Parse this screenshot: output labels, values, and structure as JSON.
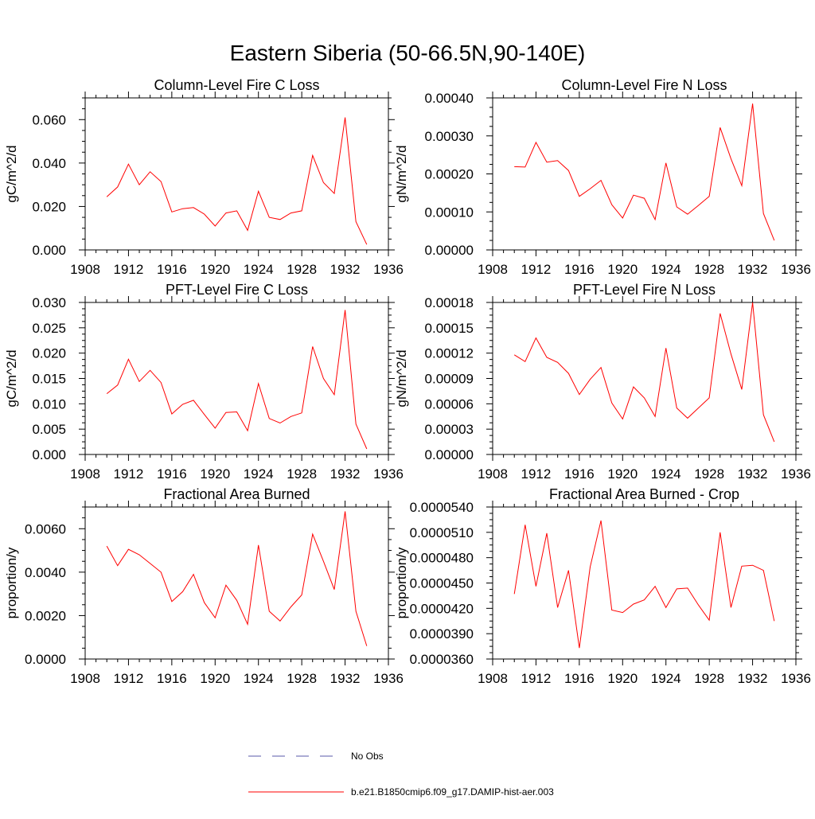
{
  "figure": {
    "title": "Eastern Siberia (50-66.5N,90-140E)"
  },
  "legend": {
    "items": [
      {
        "label": "No Obs",
        "color": "#5a5aa8",
        "style": "dashed"
      },
      {
        "label": "b.e21.B1850cmip6.f09_g17.DAMIP-hist-aer.003",
        "color": "#ff0000",
        "style": "solid"
      }
    ]
  },
  "chart_data": [
    {
      "type": "line",
      "title": "Column-Level Fire C Loss",
      "ylabel": "gC/m^2/d",
      "xlim": [
        1908,
        1936
      ],
      "ylim": [
        0,
        0.07
      ],
      "xticks": [
        "1908",
        "1912",
        "1916",
        "1920",
        "1924",
        "1928",
        "1932",
        "1936"
      ],
      "yticks": [
        "0.000",
        "0.020",
        "0.040",
        "0.060"
      ],
      "series": [
        {
          "color": "#ff0000",
          "x": [
            1910,
            1911,
            1912,
            1913,
            1914,
            1915,
            1916,
            1917,
            1918,
            1919,
            1920,
            1921,
            1922,
            1923,
            1924,
            1925,
            1926,
            1927,
            1928,
            1929,
            1930,
            1931,
            1932,
            1933,
            1934
          ],
          "values": [
            0.0245,
            0.029,
            0.0395,
            0.03,
            0.036,
            0.0315,
            0.0175,
            0.019,
            0.0195,
            0.0165,
            0.011,
            0.017,
            0.018,
            0.009,
            0.027,
            0.015,
            0.014,
            0.017,
            0.018,
            0.0435,
            0.031,
            0.026,
            0.061,
            0.013,
            0.0025
          ]
        }
      ]
    },
    {
      "type": "line",
      "title": "Column-Level Fire N Loss",
      "ylabel": "gN/m^2/d",
      "xlim": [
        1908,
        1936
      ],
      "ylim": [
        0,
        0.0004
      ],
      "xticks": [
        "1908",
        "1912",
        "1916",
        "1920",
        "1924",
        "1928",
        "1932",
        "1936"
      ],
      "yticks": [
        "0.00000",
        "0.00010",
        "0.00020",
        "0.00030",
        "0.00040"
      ],
      "series": [
        {
          "color": "#ff0000",
          "x": [
            1910,
            1911,
            1912,
            1913,
            1914,
            1915,
            1916,
            1917,
            1918,
            1919,
            1920,
            1921,
            1922,
            1923,
            1924,
            1925,
            1926,
            1927,
            1928,
            1929,
            1930,
            1931,
            1932,
            1933,
            1934
          ],
          "values": [
            0.000219,
            0.000218,
            0.000283,
            0.000231,
            0.000235,
            0.000209,
            0.000141,
            0.000161,
            0.000183,
            0.000119,
            8.4e-05,
            0.000144,
            0.000136,
            8e-05,
            0.000229,
            0.000113,
            9.4e-05,
            0.000117,
            0.000141,
            0.000322,
            0.00024,
            0.000169,
            0.000385,
            9.6e-05,
            2.5e-05
          ]
        }
      ]
    },
    {
      "type": "line",
      "title": "PFT-Level Fire C Loss",
      "ylabel": "gC/m^2/d",
      "xlim": [
        1908,
        1936
      ],
      "ylim": [
        0,
        0.03
      ],
      "xticks": [
        "1908",
        "1912",
        "1916",
        "1920",
        "1924",
        "1928",
        "1932",
        "1936"
      ],
      "yticks": [
        "0.000",
        "0.005",
        "0.010",
        "0.015",
        "0.020",
        "0.025",
        "0.030"
      ],
      "series": [
        {
          "color": "#ff0000",
          "x": [
            1910,
            1911,
            1912,
            1913,
            1914,
            1915,
            1916,
            1917,
            1918,
            1919,
            1920,
            1921,
            1922,
            1923,
            1924,
            1925,
            1926,
            1927,
            1928,
            1929,
            1930,
            1931,
            1932,
            1933,
            1934
          ],
          "values": [
            0.012,
            0.0137,
            0.0188,
            0.0144,
            0.0166,
            0.0142,
            0.008,
            0.0099,
            0.0107,
            0.0079,
            0.0052,
            0.0083,
            0.0084,
            0.0047,
            0.014,
            0.0071,
            0.0062,
            0.0075,
            0.0082,
            0.0213,
            0.015,
            0.0118,
            0.0285,
            0.006,
            0.0011
          ]
        }
      ]
    },
    {
      "type": "line",
      "title": "PFT-Level Fire N Loss",
      "ylabel": "gN/m^2/d",
      "xlim": [
        1908,
        1936
      ],
      "ylim": [
        0,
        0.00018
      ],
      "xticks": [
        "1908",
        "1912",
        "1916",
        "1920",
        "1924",
        "1928",
        "1932",
        "1936"
      ],
      "yticks": [
        "0.00000",
        "0.00003",
        "0.00006",
        "0.00009",
        "0.00012",
        "0.00015",
        "0.00018"
      ],
      "series": [
        {
          "color": "#ff0000",
          "x": [
            1910,
            1911,
            1912,
            1913,
            1914,
            1915,
            1916,
            1917,
            1918,
            1919,
            1920,
            1921,
            1922,
            1923,
            1924,
            1925,
            1926,
            1927,
            1928,
            1929,
            1930,
            1931,
            1932,
            1933,
            1934
          ],
          "values": [
            0.000118,
            0.00011,
            0.000138,
            0.000115,
            0.000109,
            9.6e-05,
            7.1e-05,
            8.9e-05,
            0.000103,
            6.1e-05,
            4.2e-05,
            8e-05,
            6.7e-05,
            4.5e-05,
            0.000126,
            5.5e-05,
            4.3e-05,
            5.5e-05,
            6.7e-05,
            0.000167,
            0.000119,
            7.7e-05,
            0.00018,
            4.7e-05,
            1.5e-05
          ]
        }
      ]
    },
    {
      "type": "line",
      "title": "Fractional Area Burned",
      "ylabel": "proportion/y",
      "xlim": [
        1908,
        1936
      ],
      "ylim": [
        0,
        0.007
      ],
      "xticks": [
        "1908",
        "1912",
        "1916",
        "1920",
        "1924",
        "1928",
        "1932",
        "1936"
      ],
      "yticks": [
        "0.0000",
        "0.0020",
        "0.0040",
        "0.0060"
      ],
      "series": [
        {
          "color": "#ff0000",
          "x": [
            1910,
            1911,
            1912,
            1913,
            1914,
            1915,
            1916,
            1917,
            1918,
            1919,
            1920,
            1921,
            1922,
            1923,
            1924,
            1925,
            1926,
            1927,
            1928,
            1929,
            1930,
            1931,
            1932,
            1933,
            1934
          ],
          "values": [
            0.0052,
            0.0043,
            0.00505,
            0.0048,
            0.0044,
            0.004,
            0.00265,
            0.0031,
            0.0039,
            0.0026,
            0.0019,
            0.0034,
            0.0027,
            0.0016,
            0.00525,
            0.0022,
            0.00175,
            0.0024,
            0.00295,
            0.00575,
            0.0045,
            0.0032,
            0.0068,
            0.0022,
            0.0006
          ]
        }
      ]
    },
    {
      "type": "line",
      "title": "Fractional Area Burned - Crop",
      "ylabel": "proportion/y",
      "xlim": [
        1908,
        1936
      ],
      "ylim": [
        3.6e-05,
        5.4e-05
      ],
      "xticks": [
        "1908",
        "1912",
        "1916",
        "1920",
        "1924",
        "1928",
        "1932",
        "1936"
      ],
      "yticks": [
        "0.0000360",
        "0.0000390",
        "0.0000420",
        "0.0000450",
        "0.0000480",
        "0.0000510",
        "0.0000540"
      ],
      "series": [
        {
          "color": "#ff0000",
          "x": [
            1910,
            1911,
            1912,
            1913,
            1914,
            1915,
            1916,
            1917,
            1918,
            1919,
            1920,
            1921,
            1922,
            1923,
            1924,
            1925,
            1926,
            1927,
            1928,
            1929,
            1930,
            1931,
            1932,
            1933,
            1934
          ],
          "values": [
            4.37e-05,
            5.19e-05,
            4.46e-05,
            5.09e-05,
            4.21e-05,
            4.65e-05,
            3.73e-05,
            4.69e-05,
            5.24e-05,
            4.18e-05,
            4.15e-05,
            4.25e-05,
            4.3e-05,
            4.46e-05,
            4.21e-05,
            4.43e-05,
            4.44e-05,
            4.24e-05,
            4.06e-05,
            5.1e-05,
            4.21e-05,
            4.7e-05,
            4.71e-05,
            4.65e-05,
            4.05e-05
          ]
        }
      ]
    }
  ]
}
